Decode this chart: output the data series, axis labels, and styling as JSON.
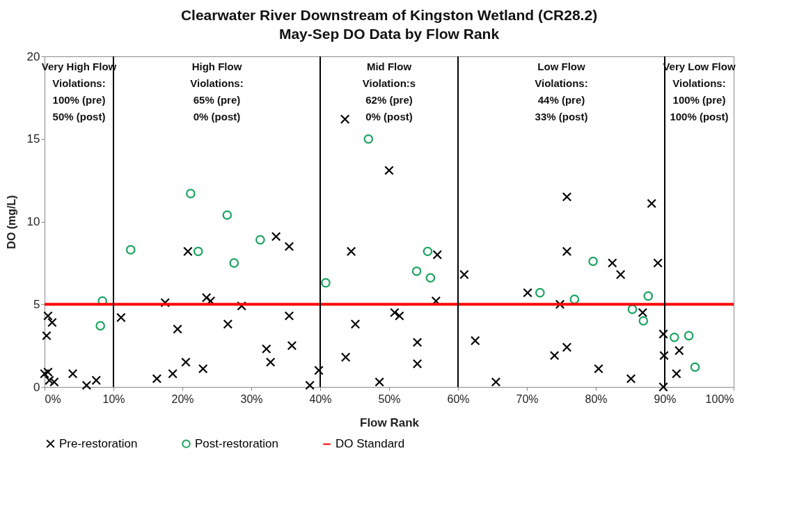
{
  "chart_data": {
    "type": "scatter",
    "title": "Clearwater River Downstream of Kingston Wetland (CR28.2)",
    "subtitle": "May-Sep DO Data by Flow Rank",
    "xlabel": "Flow Rank",
    "ylabel": "DO (mg/L)",
    "xlim": [
      0,
      100
    ],
    "ylim": [
      0,
      20
    ],
    "xticks": [
      {
        "value": 0,
        "label": "0%"
      },
      {
        "value": 10,
        "label": "10%"
      },
      {
        "value": 20,
        "label": "20%"
      },
      {
        "value": 30,
        "label": "30%"
      },
      {
        "value": 40,
        "label": "40%"
      },
      {
        "value": 50,
        "label": "50%"
      },
      {
        "value": 60,
        "label": "60%"
      },
      {
        "value": 70,
        "label": "70%"
      },
      {
        "value": 80,
        "label": "80%"
      },
      {
        "value": 90,
        "label": "90%"
      },
      {
        "value": 100,
        "label": "100%"
      }
    ],
    "yticks": [
      0,
      5,
      10,
      15,
      20
    ],
    "grid": false,
    "legend": "bottom",
    "series": [
      {
        "name": "Pre-restoration",
        "color": "#000000",
        "marker": "cross",
        "x": [
          0.3,
          0.5,
          1.1,
          0,
          0.5,
          0.7,
          1.4,
          4.1,
          6.1,
          7.5,
          11.1,
          17.5,
          19.3,
          16.3,
          18.6,
          20.5,
          23,
          20.8,
          23.5,
          24.1,
          26.6,
          28.6,
          32.2,
          32.8,
          33.6,
          35.5,
          35.5,
          35.9,
          38.5,
          39.8,
          43.6,
          44.5,
          45.1,
          43.7,
          48.6,
          50,
          50.8,
          51.5,
          54.1,
          54.1,
          57,
          56.8,
          60.9,
          62.5,
          65.5,
          70.1,
          74.8,
          74,
          75.8,
          75.8,
          75.8,
          80.4,
          82.4,
          83.6,
          85.1,
          86.8,
          88.1,
          89,
          89.8,
          89.9,
          89.8,
          91.7,
          92.1
        ],
        "values": [
          3.1,
          4.3,
          3.9,
          0.8,
          0.9,
          0.4,
          0.3,
          0.8,
          0.1,
          0.4,
          4.2,
          5.1,
          3.5,
          0.5,
          0.8,
          1.5,
          1.1,
          8.2,
          5.4,
          5.2,
          3.8,
          4.9,
          2.3,
          1.5,
          9.1,
          8.5,
          4.3,
          2.5,
          0.1,
          1.0,
          16.2,
          8.2,
          3.8,
          1.8,
          0.3,
          13.1,
          4.5,
          4.3,
          2.7,
          1.4,
          8.0,
          5.2,
          6.8,
          2.8,
          0.3,
          5.7,
          5.0,
          1.9,
          11.5,
          8.2,
          2.4,
          1.1,
          7.5,
          6.8,
          0.5,
          4.5,
          11.1,
          7.5,
          3.2,
          1.9,
          0.0,
          0.8,
          2.2
        ]
      },
      {
        "name": "Post-restoration",
        "color": "#1aa35f",
        "marker": "circle",
        "x": [
          8.4,
          8.1,
          12.5,
          21.2,
          22.3,
          26.5,
          27.5,
          31.3,
          40.8,
          47,
          55.6,
          54,
          56,
          71.9,
          76.9,
          79.6,
          85.3,
          86.9,
          87.6,
          91.4,
          93.5,
          94.4
        ],
        "values": [
          5.2,
          3.7,
          8.3,
          11.7,
          8.2,
          10.4,
          7.5,
          8.9,
          6.3,
          15.0,
          8.2,
          7.0,
          6.6,
          5.7,
          5.3,
          7.6,
          4.7,
          4.0,
          5.5,
          3.0,
          3.1,
          1.2
        ]
      }
    ],
    "ref_lines": [
      {
        "axis": "y",
        "value": 5,
        "label": "DO Standard",
        "color": "#ff0000"
      },
      {
        "axis": "x",
        "value": 10,
        "color": "#000000"
      },
      {
        "axis": "x",
        "value": 40,
        "color": "#000000"
      },
      {
        "axis": "x",
        "value": 60,
        "color": "#000000"
      },
      {
        "axis": "x",
        "value": 90,
        "color": "#000000"
      }
    ],
    "annotations": [
      "Very High Flow\nViolations:\n100% (pre)\n50% (post)",
      "High Flow\nViolations:\n65% (pre)\n0% (post)",
      "Mid Flow\nViolation:s\n62% (pre)\n0% (post)",
      "Low Flow\nViolations:\n44% (pre)\n33% (post)",
      "Very Low Flow\nViolations:\n100% (pre)\n100% (post)"
    ]
  }
}
